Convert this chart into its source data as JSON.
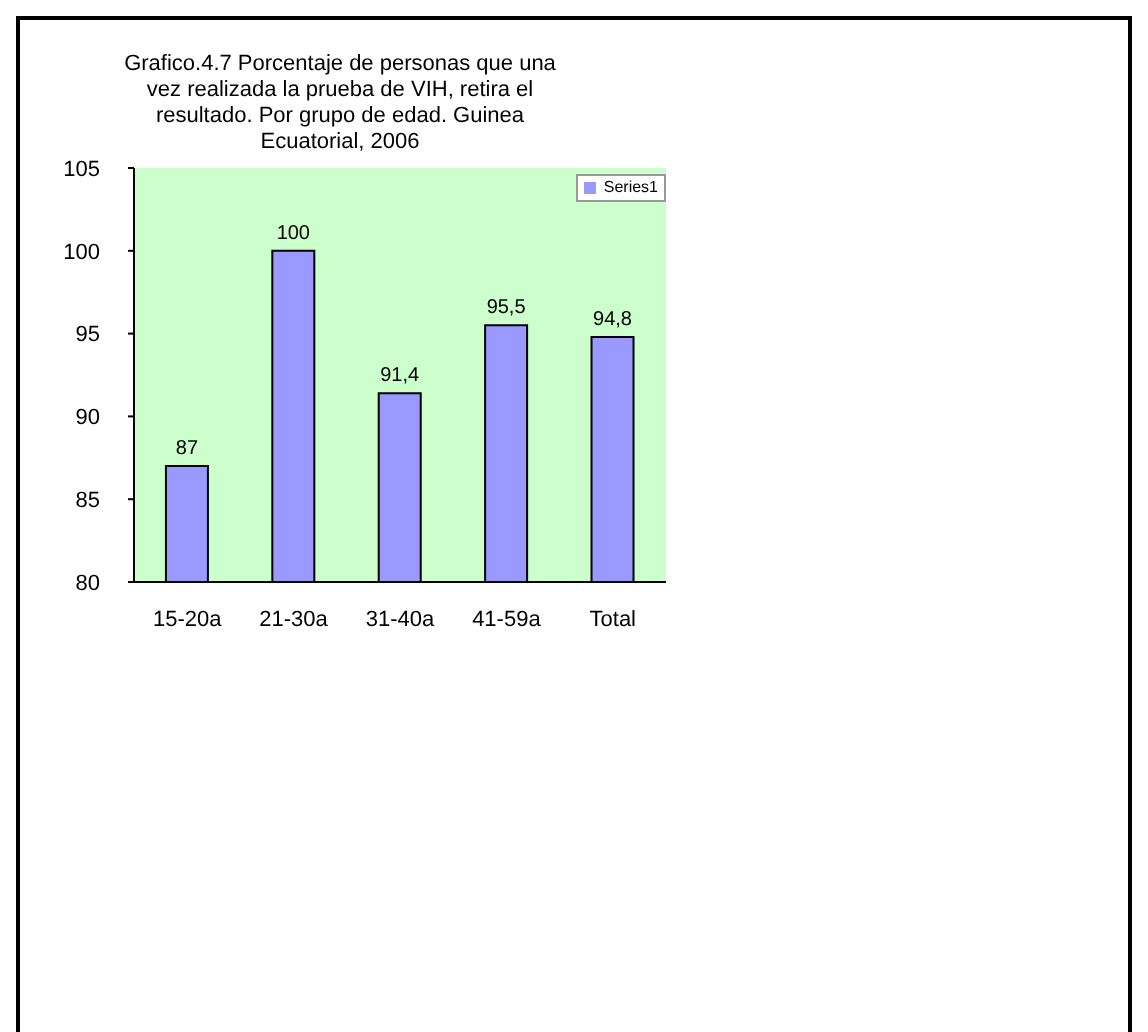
{
  "chart_data": {
    "type": "bar",
    "title": "Grafico.4.7 Porcentaje de personas que una vez realizada la prueba de VIH, retira el resultado. Por grupo de edad. Guinea Ecuatorial, 2006",
    "categories": [
      "15-20a",
      "21-30a",
      "31-40a",
      "41-59a",
      "Total"
    ],
    "series": [
      {
        "name": "Series1",
        "color": "#9999ff",
        "values": [
          87,
          100,
          91.4,
          95.5,
          94.8
        ],
        "value_labels": [
          "87",
          "100",
          "91,4",
          "95,5",
          "94,8"
        ]
      }
    ],
    "ylim": [
      80,
      105
    ],
    "yticks": [
      80,
      85,
      90,
      95,
      100,
      105
    ],
    "legend": "top right"
  }
}
